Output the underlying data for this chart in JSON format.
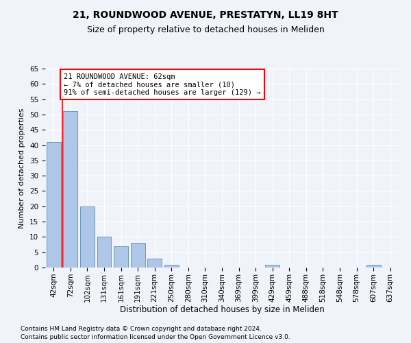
{
  "title_line1": "21, ROUNDWOOD AVENUE, PRESTATYN, LL19 8HT",
  "title_line2": "Size of property relative to detached houses in Meliden",
  "xlabel": "Distribution of detached houses by size in Meliden",
  "ylabel": "Number of detached properties",
  "categories": [
    "42sqm",
    "72sqm",
    "102sqm",
    "131sqm",
    "161sqm",
    "191sqm",
    "221sqm",
    "250sqm",
    "280sqm",
    "310sqm",
    "340sqm",
    "369sqm",
    "399sqm",
    "429sqm",
    "459sqm",
    "488sqm",
    "518sqm",
    "548sqm",
    "578sqm",
    "607sqm",
    "637sqm"
  ],
  "values": [
    41,
    51,
    20,
    10,
    7,
    8,
    3,
    1,
    0,
    0,
    0,
    0,
    0,
    1,
    0,
    0,
    0,
    0,
    0,
    1,
    0
  ],
  "bar_color": "#aec6e8",
  "bar_edge_color": "#5b8db8",
  "annotation_text_line1": "21 ROUNDWOOD AVENUE: 62sqm",
  "annotation_text_line2": "← 7% of detached houses are smaller (10)",
  "annotation_text_line3": "91% of semi-detached houses are larger (129) →",
  "annotation_box_color": "white",
  "annotation_box_edge_color": "red",
  "vline_color": "red",
  "ylim": [
    0,
    65
  ],
  "yticks": [
    0,
    5,
    10,
    15,
    20,
    25,
    30,
    35,
    40,
    45,
    50,
    55,
    60,
    65
  ],
  "footnote_line1": "Contains HM Land Registry data © Crown copyright and database right 2024.",
  "footnote_line2": "Contains public sector information licensed under the Open Government Licence v3.0.",
  "background_color": "#f0f4fa",
  "plot_bg_color": "#f0f4fa",
  "title1_fontsize": 10,
  "title2_fontsize": 9,
  "xlabel_fontsize": 8.5,
  "ylabel_fontsize": 8,
  "tick_fontsize": 7.5,
  "annotation_fontsize": 7.5,
  "footnote_fontsize": 6.5
}
